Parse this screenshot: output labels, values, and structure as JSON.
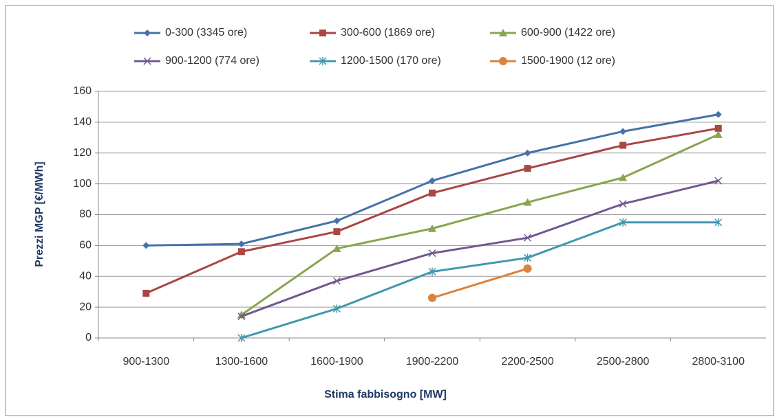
{
  "chart_data": {
    "type": "line",
    "x_label": "Stima fabbisogno [MW]",
    "y_label": "Prezzi MGP [€/MWh]",
    "categories": [
      "900-1300",
      "1300-1600",
      "1600-1900",
      "1900-2200",
      "2200-2500",
      "2500-2800",
      "2800-3100"
    ],
    "ylim": [
      0,
      160
    ],
    "yticks": [
      0,
      20,
      40,
      60,
      80,
      100,
      120,
      140,
      160
    ],
    "grid": true,
    "series": [
      {
        "name": "0-300 (3345 ore)",
        "color": "#4572a7",
        "marker": "diamond",
        "values": [
          60,
          61,
          76,
          102,
          120,
          134,
          145
        ]
      },
      {
        "name": "300-600 (1869 ore)",
        "color": "#aa4643",
        "marker": "square",
        "values": [
          29,
          56,
          69,
          94,
          110,
          125,
          136
        ]
      },
      {
        "name": "600-900 (1422 ore)",
        "color": "#89a54e",
        "marker": "triangle",
        "values": [
          null,
          15,
          58,
          71,
          88,
          104,
          132
        ]
      },
      {
        "name": "900-1200 (774 ore)",
        "color": "#71588f",
        "marker": "x",
        "values": [
          null,
          14,
          37,
          55,
          65,
          87,
          102
        ]
      },
      {
        "name": "1200-1500 (170 ore)",
        "color": "#4198af",
        "marker": "star",
        "values": [
          null,
          0,
          19,
          43,
          52,
          75,
          75
        ]
      },
      {
        "name": "1500-1900 (12 ore)",
        "color": "#db843d",
        "marker": "circle",
        "values": [
          null,
          null,
          null,
          26,
          45,
          null,
          null
        ]
      }
    ]
  }
}
